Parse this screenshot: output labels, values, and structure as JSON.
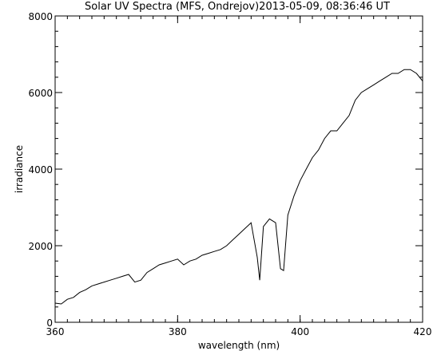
{
  "chart_data": {
    "type": "line",
    "title": "Solar UV Spectra (MFS, Ondrejov)2013-05-09, 08:36:46 UT",
    "xlabel": "wavelength (nm)",
    "ylabel": "irradiance",
    "xlim": [
      360,
      420
    ],
    "ylim": [
      0,
      8000
    ],
    "x_ticks": [
      360,
      380,
      400,
      420
    ],
    "y_ticks": [
      0,
      2000,
      4000,
      6000,
      8000
    ],
    "x_minor_step": 2,
    "y_minor_step": 400,
    "grid": false,
    "legend": "none",
    "series": [
      {
        "line_color": "#000000",
        "x": [
          360,
          361,
          362,
          363,
          364,
          365,
          366,
          367,
          368,
          369,
          370,
          371,
          372,
          373,
          374,
          375,
          376,
          377,
          378,
          379,
          380,
          381,
          382,
          383,
          384,
          385,
          386,
          387,
          388,
          389,
          390,
          391,
          392,
          393,
          393.4,
          394,
          395,
          396,
          396.8,
          397.3,
          398,
          399,
          400,
          401,
          402,
          403,
          404,
          405,
          406,
          407,
          408,
          409,
          410,
          411,
          412,
          413,
          414,
          415,
          416,
          417,
          418,
          419,
          420
        ],
        "y": [
          500,
          480,
          600,
          650,
          780,
          850,
          950,
          1000,
          1050,
          1100,
          1150,
          1200,
          1250,
          1050,
          1100,
          1300,
          1400,
          1500,
          1550,
          1600,
          1650,
          1500,
          1600,
          1650,
          1750,
          1800,
          1850,
          1900,
          2000,
          2150,
          2300,
          2450,
          2600,
          1700,
          1100,
          2500,
          2700,
          2600,
          1400,
          1350,
          2800,
          3300,
          3700,
          4000,
          4300,
          4500,
          4800,
          5000,
          5000,
          5200,
          5400,
          5800,
          6000,
          6100,
          6200,
          6300,
          6400,
          6500,
          6500,
          6600,
          6600,
          6500,
          6300
        ]
      }
    ]
  }
}
